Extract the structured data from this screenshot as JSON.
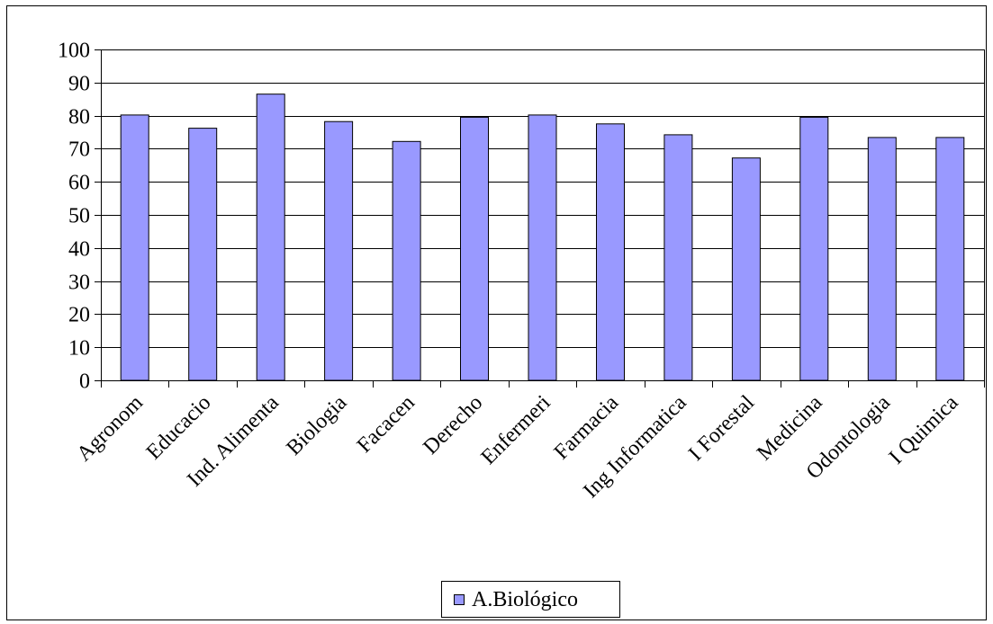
{
  "chart_data": {
    "type": "bar",
    "categories": [
      "Agronom",
      "Educacio",
      "Ind. Alimenta",
      "Biologia",
      "Facacen",
      "Derecho",
      "Enfermeri",
      "Farmacia",
      "Ing Informatica",
      "I Forestal",
      "Medicina",
      "Odontologia",
      "I Quimica"
    ],
    "series": [
      {
        "name": "A.Biológico",
        "values": [
          80.2,
          76.2,
          86.5,
          78.2,
          72.2,
          79.5,
          80.2,
          77.5,
          74.2,
          67.2,
          79.5,
          73.4,
          73.4
        ]
      }
    ],
    "ylim": [
      0,
      100
    ],
    "yticks": [
      "0",
      "10",
      "20",
      "30",
      "40",
      "50",
      "60",
      "70",
      "80",
      "90",
      "100"
    ],
    "grid": true,
    "legend_position": "bottom",
    "colors": {
      "bar": "#9999ff",
      "bar_edge": "#000000",
      "grid": "#000000"
    }
  }
}
